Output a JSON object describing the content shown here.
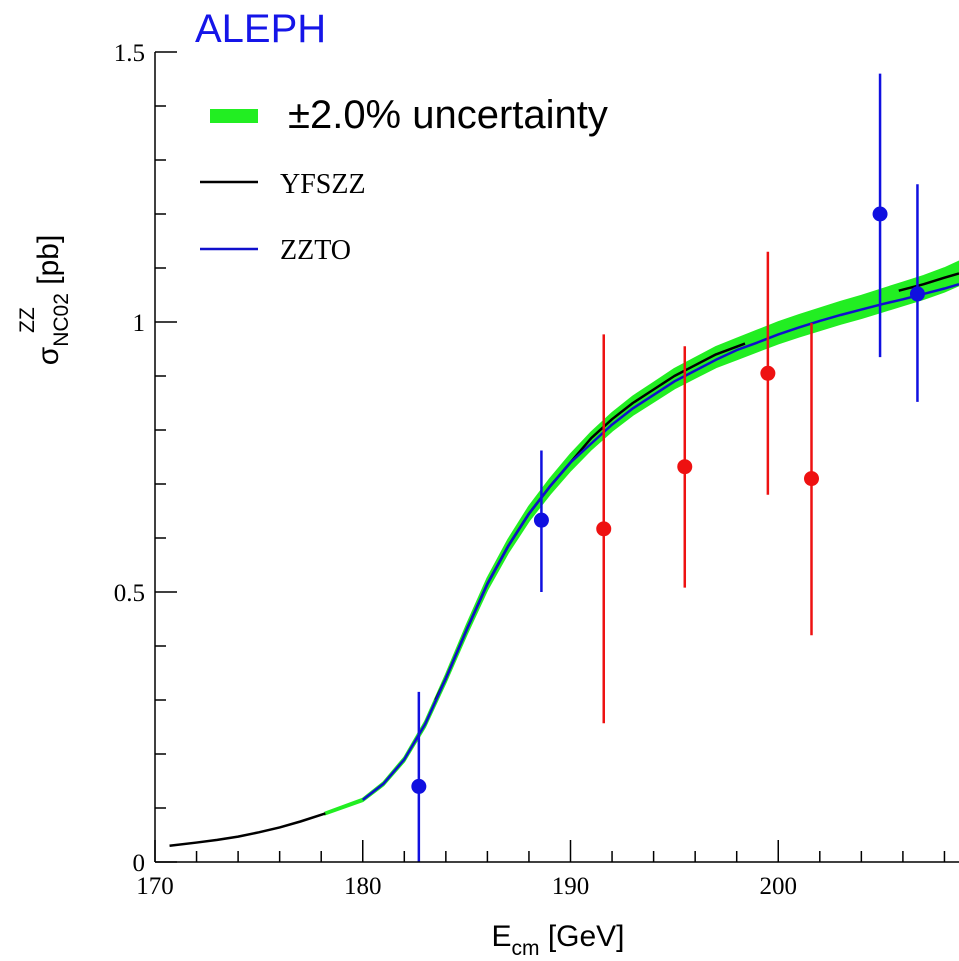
{
  "chart_data": {
    "type": "line",
    "title": "ALEPH",
    "xlabel": {
      "main": "E",
      "sub": "cm",
      "unit": " [GeV]"
    },
    "ylabel": {
      "main": "σ",
      "sup": "ZZ",
      "sub": "NC02",
      "unit": " [pb]"
    },
    "xlim": [
      170,
      208.7
    ],
    "ylim": [
      0,
      1.5
    ],
    "x_ticks": [
      170,
      180,
      190,
      200
    ],
    "y_ticks": [
      {
        "value": 0,
        "label": "0"
      },
      {
        "value": 0.5,
        "label": "0.5"
      },
      {
        "value": 1,
        "label": "1"
      },
      {
        "value": 1.5,
        "label": "1.5"
      }
    ],
    "grid": false,
    "legend_position": "top-left",
    "legend": [
      {
        "label": "±2.0% uncertainty",
        "kind": "band",
        "color": "#22ee22"
      },
      {
        "label": "YFSZZ",
        "kind": "line",
        "color": "#000000"
      },
      {
        "label": "ZZTO",
        "kind": "line",
        "color": "#1010cc"
      }
    ],
    "band": {
      "name": "±2.0% uncertainty",
      "relative": 0.02,
      "color": "#22ee22",
      "x": [
        178.2,
        180,
        181,
        182,
        183,
        184,
        185,
        186,
        187,
        188,
        189,
        190,
        191,
        192,
        193,
        194,
        195,
        196,
        197,
        198,
        199,
        200,
        201,
        202,
        203,
        204,
        205,
        206,
        207,
        208,
        208.7
      ],
      "y": [
        0.09,
        0.115,
        0.145,
        0.19,
        0.255,
        0.34,
        0.43,
        0.515,
        0.585,
        0.645,
        0.695,
        0.74,
        0.78,
        0.815,
        0.845,
        0.87,
        0.895,
        0.915,
        0.935,
        0.95,
        0.965,
        0.98,
        0.993,
        1.005,
        1.017,
        1.028,
        1.04,
        1.052,
        1.064,
        1.078,
        1.09
      ]
    },
    "series": [
      {
        "name": "YFSZZ",
        "color": "#000000",
        "segments": [
          {
            "x": [
              170.7,
              172,
              173,
              174,
              175,
              176,
              177,
              178.2
            ],
            "y": [
              0.03,
              0.036,
              0.041,
              0.047,
              0.055,
              0.064,
              0.075,
              0.09
            ]
          },
          {
            "x": [
              183.5,
              184,
              185,
              186,
              187,
              188,
              189,
              190,
              191,
              192,
              193,
              194,
              195,
              196,
              197,
              198.4
            ],
            "y": [
              0.3,
              0.34,
              0.43,
              0.515,
              0.585,
              0.645,
              0.695,
              0.74,
              0.785,
              0.82,
              0.85,
              0.875,
              0.9,
              0.92,
              0.94,
              0.96
            ]
          },
          {
            "x": [
              205.8,
              206.5,
              207,
              208,
              208.7
            ],
            "y": [
              1.058,
              1.065,
              1.07,
              1.082,
              1.09
            ]
          }
        ]
      },
      {
        "name": "ZZTO",
        "color": "#1010cc",
        "segments": [
          {
            "x": [
              180,
              181,
              182,
              183,
              184,
              185,
              186,
              187,
              188,
              189,
              190,
              191,
              192,
              193,
              194,
              195,
              196,
              197,
              198,
              199,
              200,
              201,
              202,
              203,
              204,
              205,
              206,
              207,
              208,
              208.7
            ],
            "y": [
              0.115,
              0.145,
              0.19,
              0.255,
              0.34,
              0.43,
              0.515,
              0.585,
              0.645,
              0.695,
              0.74,
              0.775,
              0.81,
              0.84,
              0.865,
              0.89,
              0.91,
              0.93,
              0.948,
              0.962,
              0.977,
              0.99,
              1.002,
              1.013,
              1.023,
              1.033,
              1.042,
              1.052,
              1.062,
              1.07
            ]
          }
        ]
      }
    ],
    "data_points": [
      {
        "x": 182.7,
        "y": 0.14,
        "yerr_low": 0,
        "yerr_high": 0.315,
        "color": "#1010e0"
      },
      {
        "x": 188.6,
        "y": 0.633,
        "yerr_low": 0.5,
        "yerr_high": 0.762,
        "color": "#1010e0"
      },
      {
        "x": 191.6,
        "y": 0.617,
        "yerr_low": 0.257,
        "yerr_high": 0.977,
        "color": "#ee1111"
      },
      {
        "x": 195.5,
        "y": 0.732,
        "yerr_low": 0.508,
        "yerr_high": 0.955,
        "color": "#ee1111"
      },
      {
        "x": 199.5,
        "y": 0.905,
        "yerr_low": 0.68,
        "yerr_high": 1.13,
        "color": "#ee1111"
      },
      {
        "x": 201.6,
        "y": 0.71,
        "yerr_low": 0.42,
        "yerr_high": 0.998,
        "color": "#ee1111"
      },
      {
        "x": 204.9,
        "y": 1.2,
        "yerr_low": 0.935,
        "yerr_high": 1.46,
        "color": "#1010e0"
      },
      {
        "x": 206.7,
        "y": 1.052,
        "yerr_low": 0.852,
        "yerr_high": 1.255,
        "color": "#1010e0"
      }
    ],
    "colors": {
      "title": "#1515e8",
      "axis": "#000000"
    }
  }
}
